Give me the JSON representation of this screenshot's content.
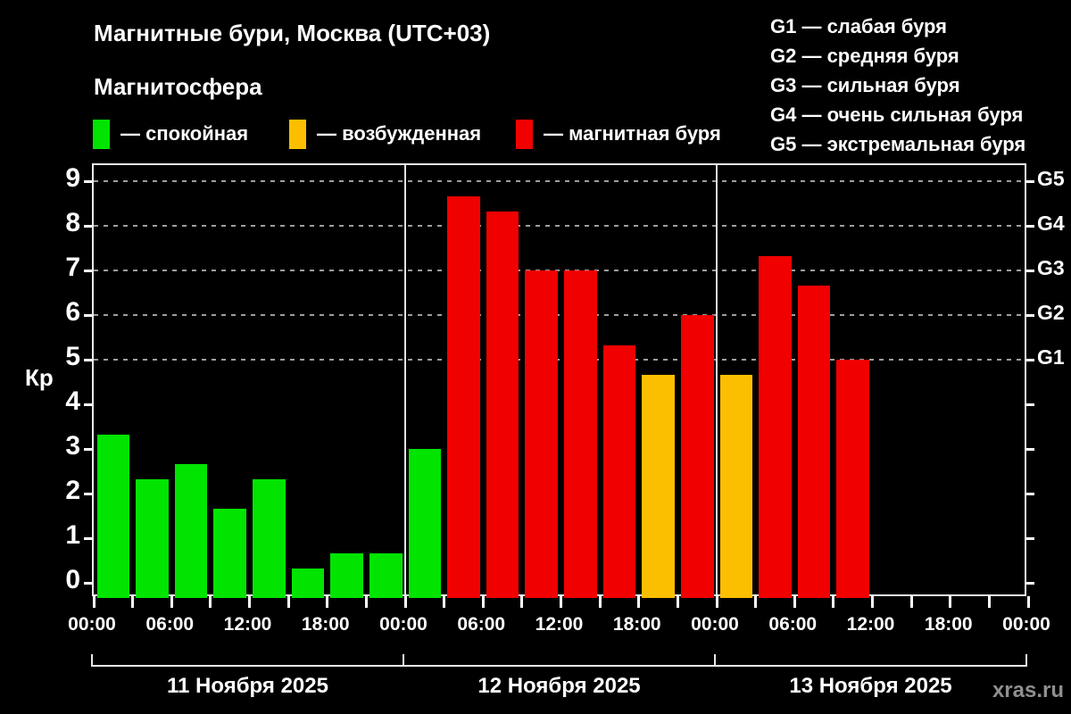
{
  "title": "Магнитные бури, Москва (UTC+03)",
  "subtitle": "Магнитосфера",
  "legend": {
    "quiet": {
      "label": "— спокойная",
      "color": "#00e400"
    },
    "excited": {
      "label": "— возбужденная",
      "color": "#fcbf00"
    },
    "storm": {
      "label": "— магнитная буря",
      "color": "#f10000"
    }
  },
  "storm_scale": [
    {
      "code": "G1",
      "label": "G1 — слабая буря"
    },
    {
      "code": "G2",
      "label": "G2 — средняя буря"
    },
    {
      "code": "G3",
      "label": "G3 — сильная буря"
    },
    {
      "code": "G4",
      "label": "G4 — очень сильная буря"
    },
    {
      "code": "G5",
      "label": "G5 — экстремальная буря"
    }
  ],
  "watermark": "xras.ru",
  "chart_data": {
    "type": "bar",
    "title": "Магнитные бури, Москва (UTC+03)",
    "ylabel": "Кр",
    "ylim": [
      0,
      9
    ],
    "yticks": [
      0,
      1,
      2,
      3,
      4,
      5,
      6,
      7,
      8,
      9
    ],
    "gridlines": [
      5,
      6,
      7,
      8,
      9
    ],
    "grid": "dashed, G-levels only",
    "legend_position": "top",
    "right_axis_labels": [
      {
        "value": 5,
        "label": "G1"
      },
      {
        "value": 6,
        "label": "G2"
      },
      {
        "value": 7,
        "label": "G3"
      },
      {
        "value": 8,
        "label": "G4"
      },
      {
        "value": 9,
        "label": "G5"
      }
    ],
    "x_hour_labels": [
      "00:00",
      "06:00",
      "12:00",
      "18:00",
      "00:00",
      "06:00",
      "12:00",
      "18:00",
      "00:00",
      "06:00",
      "12:00",
      "18:00",
      "00:00"
    ],
    "hours_per_slot": 3,
    "days": [
      {
        "date": "11 Ноября 2025",
        "values": [
          3.33,
          2.33,
          2.67,
          1.67,
          2.33,
          0.33,
          0.67,
          0.67
        ],
        "statuses": [
          "quiet",
          "quiet",
          "quiet",
          "quiet",
          "quiet",
          "quiet",
          "quiet",
          "quiet"
        ]
      },
      {
        "date": "12 Ноября 2025",
        "values": [
          3.0,
          8.67,
          8.33,
          7.0,
          7.0,
          5.33,
          4.67,
          6.0
        ],
        "statuses": [
          "quiet",
          "storm",
          "storm",
          "storm",
          "storm",
          "storm",
          "excited",
          "storm"
        ]
      },
      {
        "date": "13 Ноября 2025",
        "values": [
          4.67,
          7.33,
          6.67,
          5.0,
          null,
          null,
          null,
          null
        ],
        "statuses": [
          "excited",
          "storm",
          "storm",
          "storm",
          null,
          null,
          null,
          null
        ]
      }
    ]
  }
}
